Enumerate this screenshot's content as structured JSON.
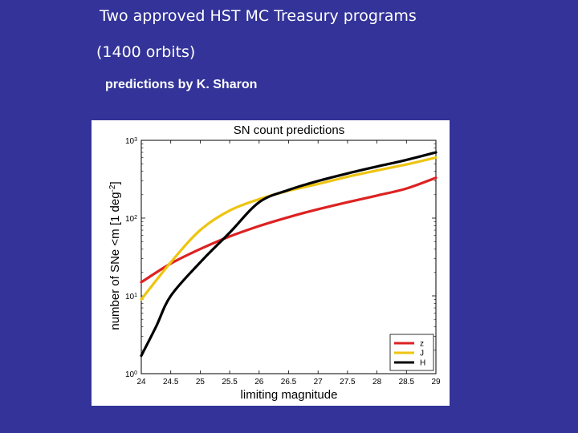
{
  "slide": {
    "line1": "Two approved HST MC Treasury programs",
    "line2": "(1400 orbits)",
    "line3": "predictions by K. Sharon"
  },
  "chart_data": {
    "type": "line",
    "title": "SN count predictions",
    "xlabel": "limiting magnitude",
    "ylabel": "number of SNe <m [1 deg-2]",
    "xlim": [
      24,
      29
    ],
    "ylim": [
      1,
      1000
    ],
    "yscale": "log",
    "x_ticks": [
      "24",
      "24.5",
      "25",
      "25.5",
      "26",
      "26.5",
      "27",
      "27.5",
      "28",
      "28.5",
      "29"
    ],
    "y_ticks": [
      {
        "base": "10",
        "exp": "0"
      },
      {
        "base": "10",
        "exp": "1"
      },
      {
        "base": "10",
        "exp": "2"
      },
      {
        "base": "10",
        "exp": "3"
      }
    ],
    "legend_position": "bottom-right",
    "grid": false,
    "series": [
      {
        "name": "z",
        "color": "#dd2222",
        "x": [
          24,
          24.5,
          25,
          25.5,
          26,
          26.5,
          27,
          27.5,
          28,
          28.5,
          29
        ],
        "y": [
          15,
          26,
          40,
          58,
          79,
          103,
          130,
          160,
          195,
          240,
          330
        ]
      },
      {
        "name": "J",
        "color": "#eec411",
        "x": [
          24,
          24.5,
          25,
          25.5,
          26,
          26.5,
          27,
          27.5,
          28,
          28.5,
          29
        ],
        "y": [
          9,
          27,
          70,
          125,
          175,
          225,
          275,
          340,
          410,
          490,
          600
        ]
      },
      {
        "name": "H",
        "color": "#000000",
        "x": [
          24,
          24.25,
          24.5,
          25,
          25.5,
          26,
          26.5,
          27,
          27.5,
          28,
          28.5,
          29
        ],
        "y": [
          1.7,
          4,
          10,
          27,
          65,
          160,
          230,
          300,
          375,
          460,
          560,
          700
        ]
      }
    ]
  }
}
